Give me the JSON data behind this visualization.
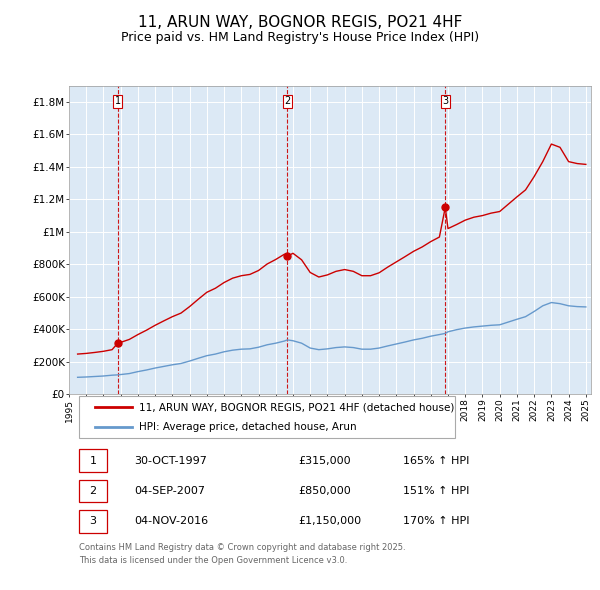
{
  "title": "11, ARUN WAY, BOGNOR REGIS, PO21 4HF",
  "subtitle": "Price paid vs. HM Land Registry's House Price Index (HPI)",
  "title_fontsize": 11,
  "subtitle_fontsize": 9,
  "background_color": "#ffffff",
  "plot_background_color": "#dce9f5",
  "grid_color": "#ffffff",
  "red_color": "#cc0000",
  "blue_color": "#6699cc",
  "ylim": [
    0,
    1900000
  ],
  "yticks": [
    0,
    200000,
    400000,
    600000,
    800000,
    1000000,
    1200000,
    1400000,
    1600000,
    1800000
  ],
  "ytick_labels": [
    "£0",
    "£200K",
    "£400K",
    "£600K",
    "£800K",
    "£1M",
    "£1.2M",
    "£1.4M",
    "£1.6M",
    "£1.8M"
  ],
  "sale_dates_num": [
    1997.83,
    2007.67,
    2016.84
  ],
  "sale_prices": [
    315000,
    850000,
    1150000
  ],
  "sale_labels": [
    "1",
    "2",
    "3"
  ],
  "vline_color": "#cc0000",
  "legend_entries": [
    "11, ARUN WAY, BOGNOR REGIS, PO21 4HF (detached house)",
    "HPI: Average price, detached house, Arun"
  ],
  "table_rows": [
    {
      "num": "1",
      "date": "30-OCT-1997",
      "price": "£315,000",
      "hpi": "165% ↑ HPI"
    },
    {
      "num": "2",
      "date": "04-SEP-2007",
      "price": "£850,000",
      "hpi": "151% ↑ HPI"
    },
    {
      "num": "3",
      "date": "04-NOV-2016",
      "price": "£1,150,000",
      "hpi": "170% ↑ HPI"
    }
  ],
  "footer": "Contains HM Land Registry data © Crown copyright and database right 2025.\nThis data is licensed under the Open Government Licence v3.0.",
  "hpi_x": [
    1995.5,
    1996.0,
    1996.5,
    1997.0,
    1997.5,
    1997.83,
    1998.0,
    1998.5,
    1999.0,
    1999.5,
    2000.0,
    2000.5,
    2001.0,
    2001.5,
    2002.0,
    2002.5,
    2003.0,
    2003.5,
    2004.0,
    2004.5,
    2005.0,
    2005.5,
    2006.0,
    2006.5,
    2007.0,
    2007.5,
    2007.67,
    2008.0,
    2008.5,
    2009.0,
    2009.5,
    2010.0,
    2010.5,
    2011.0,
    2011.5,
    2012.0,
    2012.5,
    2013.0,
    2013.5,
    2014.0,
    2014.5,
    2015.0,
    2015.5,
    2016.0,
    2016.5,
    2016.84,
    2017.0,
    2017.5,
    2018.0,
    2018.5,
    2019.0,
    2019.5,
    2020.0,
    2020.5,
    2021.0,
    2021.5,
    2022.0,
    2022.5,
    2023.0,
    2023.5,
    2024.0,
    2024.5,
    2025.0
  ],
  "hpi_y": [
    105000,
    107000,
    110000,
    113000,
    118000,
    120000,
    122000,
    128000,
    140000,
    150000,
    162000,
    172000,
    182000,
    190000,
    205000,
    222000,
    238000,
    248000,
    262000,
    272000,
    278000,
    280000,
    290000,
    305000,
    315000,
    328000,
    335000,
    330000,
    315000,
    285000,
    275000,
    280000,
    288000,
    292000,
    288000,
    278000,
    278000,
    285000,
    298000,
    310000,
    322000,
    335000,
    345000,
    358000,
    368000,
    375000,
    385000,
    398000,
    408000,
    415000,
    420000,
    425000,
    428000,
    445000,
    462000,
    478000,
    510000,
    545000,
    565000,
    558000,
    545000,
    540000,
    538000
  ],
  "red_x": [
    1995.5,
    1996.0,
    1996.5,
    1997.0,
    1997.5,
    1997.83,
    1998.0,
    1998.5,
    1999.0,
    1999.5,
    2000.0,
    2000.5,
    2001.0,
    2001.5,
    2002.0,
    2002.5,
    2003.0,
    2003.5,
    2004.0,
    2004.5,
    2005.0,
    2005.5,
    2006.0,
    2006.5,
    2007.0,
    2007.5,
    2007.67,
    2008.0,
    2008.5,
    2009.0,
    2009.5,
    2010.0,
    2010.5,
    2011.0,
    2011.5,
    2012.0,
    2012.5,
    2013.0,
    2013.5,
    2014.0,
    2014.5,
    2015.0,
    2015.5,
    2016.0,
    2016.5,
    2016.84,
    2017.0,
    2017.5,
    2018.0,
    2018.5,
    2019.0,
    2019.5,
    2020.0,
    2020.5,
    2021.0,
    2021.5,
    2022.0,
    2022.5,
    2023.0,
    2023.5,
    2024.0,
    2024.5,
    2025.0
  ],
  "red_y": [
    248000,
    252000,
    258000,
    265000,
    275000,
    315000,
    320000,
    338000,
    368000,
    395000,
    425000,
    452000,
    478000,
    500000,
    540000,
    585000,
    628000,
    653000,
    688000,
    715000,
    730000,
    738000,
    762000,
    802000,
    830000,
    862000,
    850000,
    868000,
    828000,
    750000,
    722000,
    735000,
    757000,
    768000,
    757000,
    730000,
    730000,
    748000,
    783000,
    815000,
    847000,
    880000,
    907000,
    940000,
    968000,
    1150000,
    1020000,
    1045000,
    1072000,
    1090000,
    1100000,
    1115000,
    1125000,
    1170000,
    1215000,
    1258000,
    1340000,
    1432000,
    1540000,
    1520000,
    1432000,
    1420000,
    1415000
  ]
}
